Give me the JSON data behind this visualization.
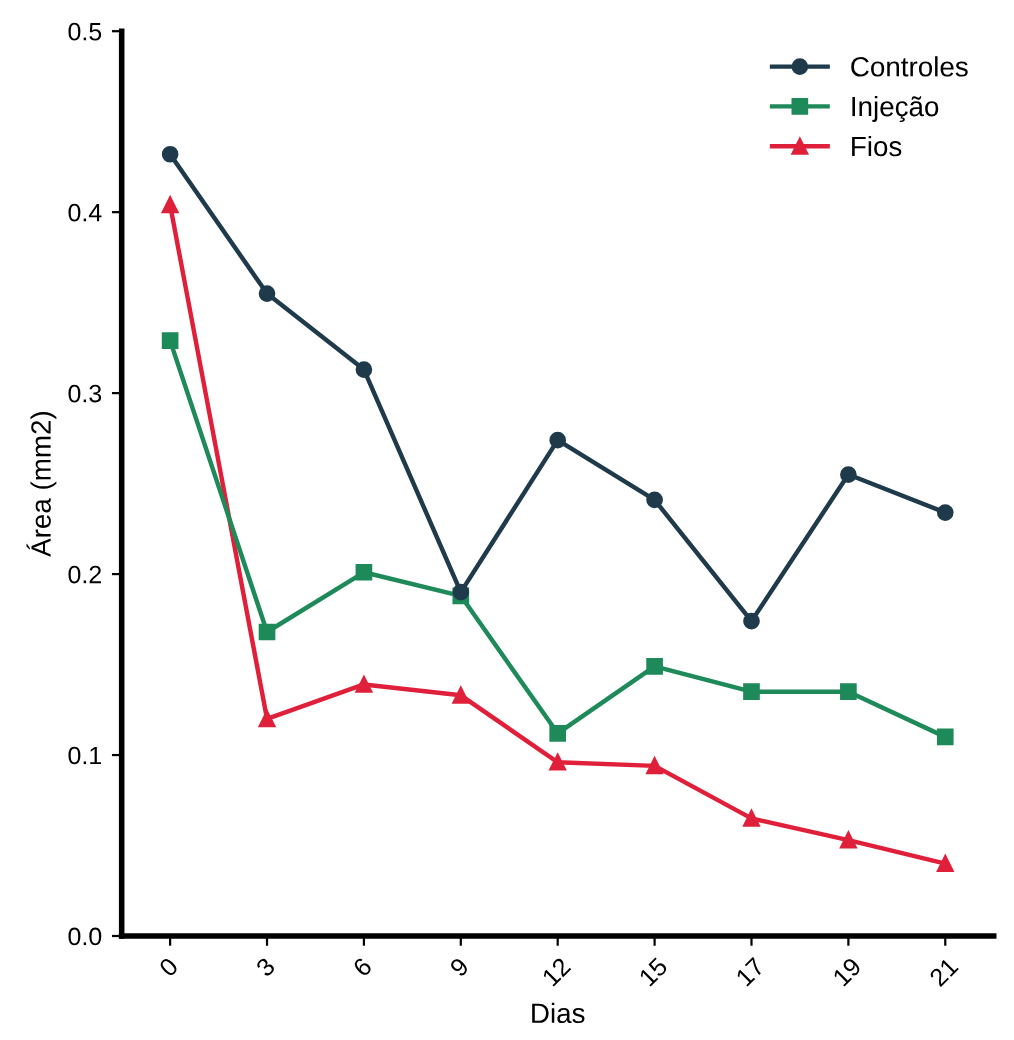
{
  "chart_data": {
    "type": "line",
    "xlabel": "Dias",
    "ylabel": "Área (mm2)",
    "categories": [
      "0",
      "3",
      "6",
      "9",
      "12",
      "15",
      "17",
      "19",
      "21"
    ],
    "series": [
      {
        "name": "Controles",
        "color": "#1f3a4a",
        "marker": "circle",
        "values": [
          0.432,
          0.355,
          0.313,
          0.19,
          0.274,
          0.241,
          0.174,
          0.255,
          0.234
        ]
      },
      {
        "name": "Injeção",
        "color": "#1e8a5a",
        "marker": "square",
        "values": [
          0.329,
          0.168,
          0.201,
          0.188,
          0.112,
          0.149,
          0.135,
          0.135,
          0.11
        ]
      },
      {
        "name": "Fios",
        "color": "#e0203a",
        "marker": "triangle",
        "values": [
          0.404,
          0.12,
          0.139,
          0.133,
          0.096,
          0.094,
          0.065,
          0.053,
          0.04
        ]
      }
    ],
    "ylim": [
      0,
      0.5
    ],
    "yticks": [
      {
        "value": 0,
        "label": "0.0"
      },
      0.1,
      0.2,
      0.3,
      0.4,
      0.5
    ],
    "grid": false,
    "legend": "top right",
    "line_style": "solid"
  }
}
